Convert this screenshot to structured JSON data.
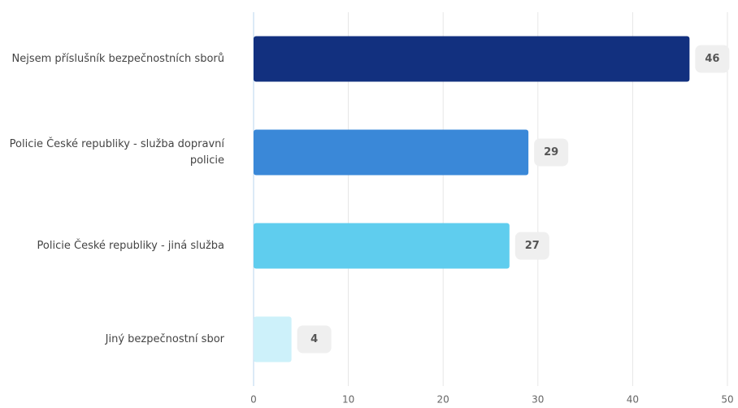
{
  "chart_data": {
    "type": "bar",
    "orientation": "horizontal",
    "categories": [
      "Nejsem příslušník bezpečnostních sborů",
      "Policie České republiky - služba dopravní policie",
      "Policie České republiky - jiná služba",
      "Jiný bezpečnostní sbor"
    ],
    "values": [
      46,
      29,
      27,
      4
    ],
    "colors": [
      "#12307f",
      "#3a88d8",
      "#5fcdee",
      "#cdf1fa"
    ],
    "xlim": [
      0,
      50
    ],
    "xticks": [
      0,
      10,
      20,
      30,
      40,
      50
    ],
    "grid": true
  }
}
